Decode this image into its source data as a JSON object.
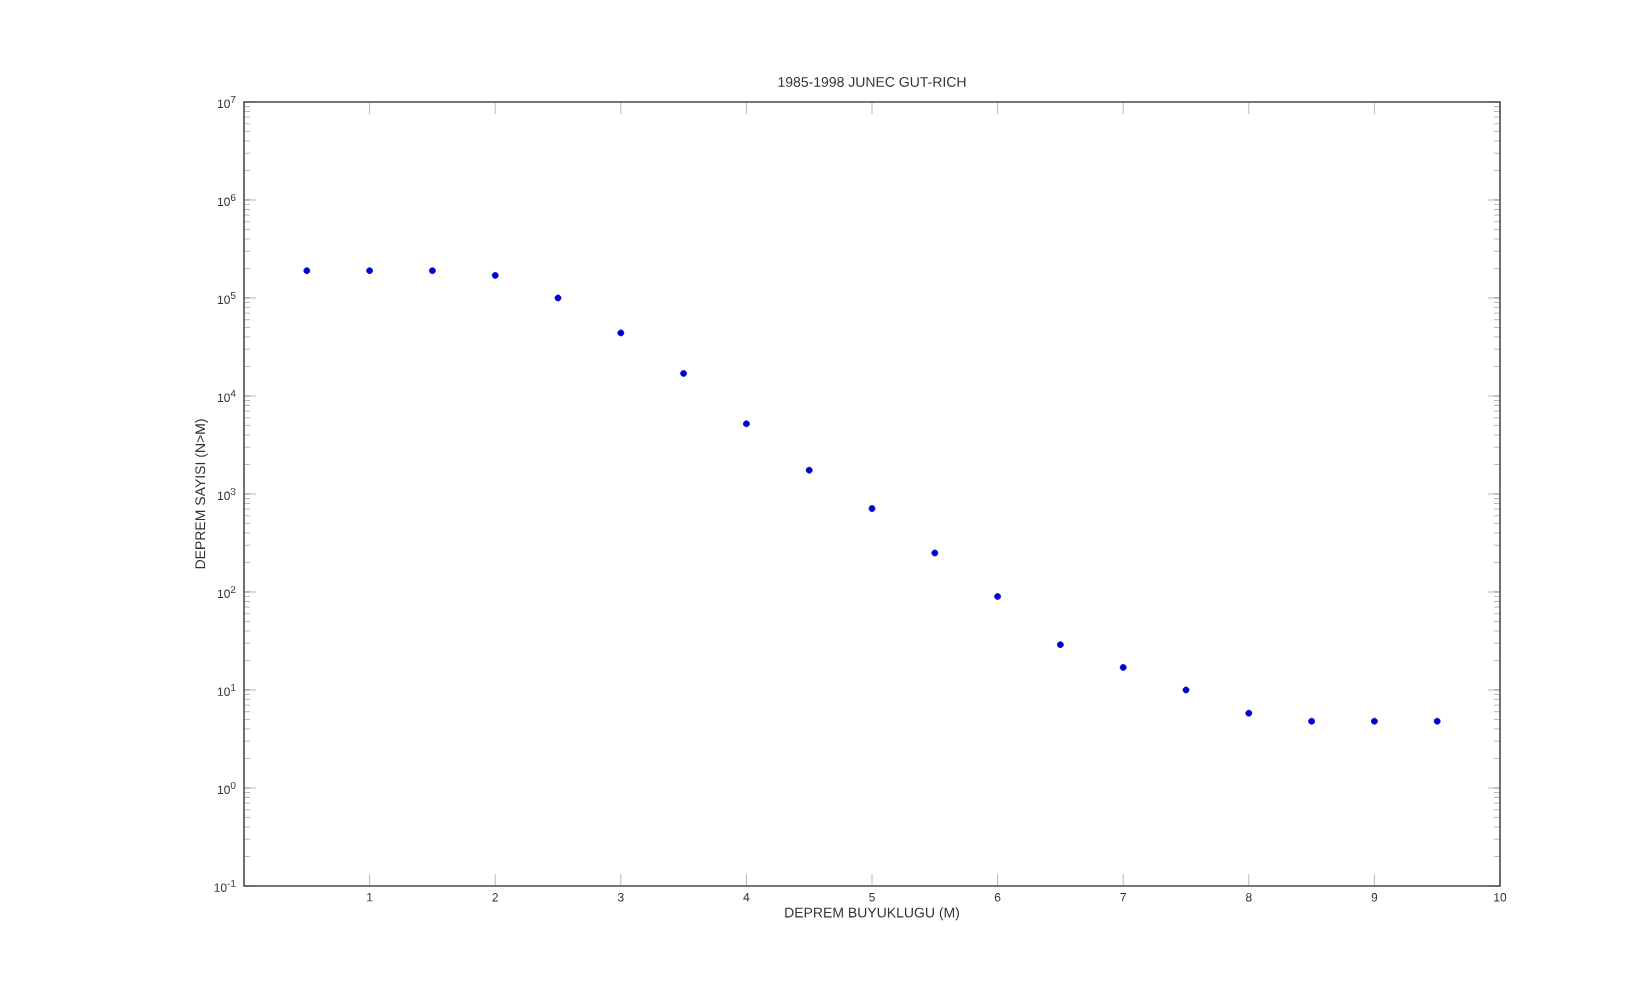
{
  "chart_data": {
    "type": "scatter",
    "title": "1985-1998 JUNEC GUT-RICH",
    "xlabel": "DEPREM BUYUKLUGU (M)",
    "ylabel": "DEPREM SAYISI (N>M)",
    "x": [
      0.5,
      1.0,
      1.5,
      2.0,
      2.5,
      3.0,
      3.5,
      4.0,
      4.5,
      5.0,
      5.5,
      6.0,
      6.5,
      7.0,
      7.5,
      8.0,
      8.5,
      9.0,
      9.5
    ],
    "values": [
      190000,
      190000,
      190000,
      170000,
      100000,
      44000,
      17000,
      5200,
      1750,
      710,
      250,
      90,
      29,
      17,
      10,
      5.8,
      4.8,
      4.8,
      4.8
    ],
    "color": "#0000cc",
    "marker": "circle",
    "log": "y",
    "grid": false,
    "xlim": [
      0,
      10
    ],
    "ylim": [
      0.1,
      10000000
    ],
    "xticks": [
      1,
      2,
      3,
      4,
      5,
      6,
      7,
      8,
      9,
      10
    ],
    "yticks": [
      {
        "value": 0.1,
        "label": "10$^{-1}$"
      },
      {
        "value": 1,
        "label": "10$^{0}$"
      },
      {
        "value": 10,
        "label": "10$^{1}$"
      },
      {
        "value": 100,
        "label": "10$^{2}$"
      },
      {
        "value": 1000,
        "label": "10$^{3}$"
      },
      {
        "value": 10000,
        "label": "10$^{4}$"
      },
      {
        "value": 100000,
        "label": "10$^{5}$"
      },
      {
        "value": 1000000,
        "label": "10$^{6}$"
      },
      {
        "value": 10000000,
        "label": "10$^{7}$"
      }
    ]
  }
}
